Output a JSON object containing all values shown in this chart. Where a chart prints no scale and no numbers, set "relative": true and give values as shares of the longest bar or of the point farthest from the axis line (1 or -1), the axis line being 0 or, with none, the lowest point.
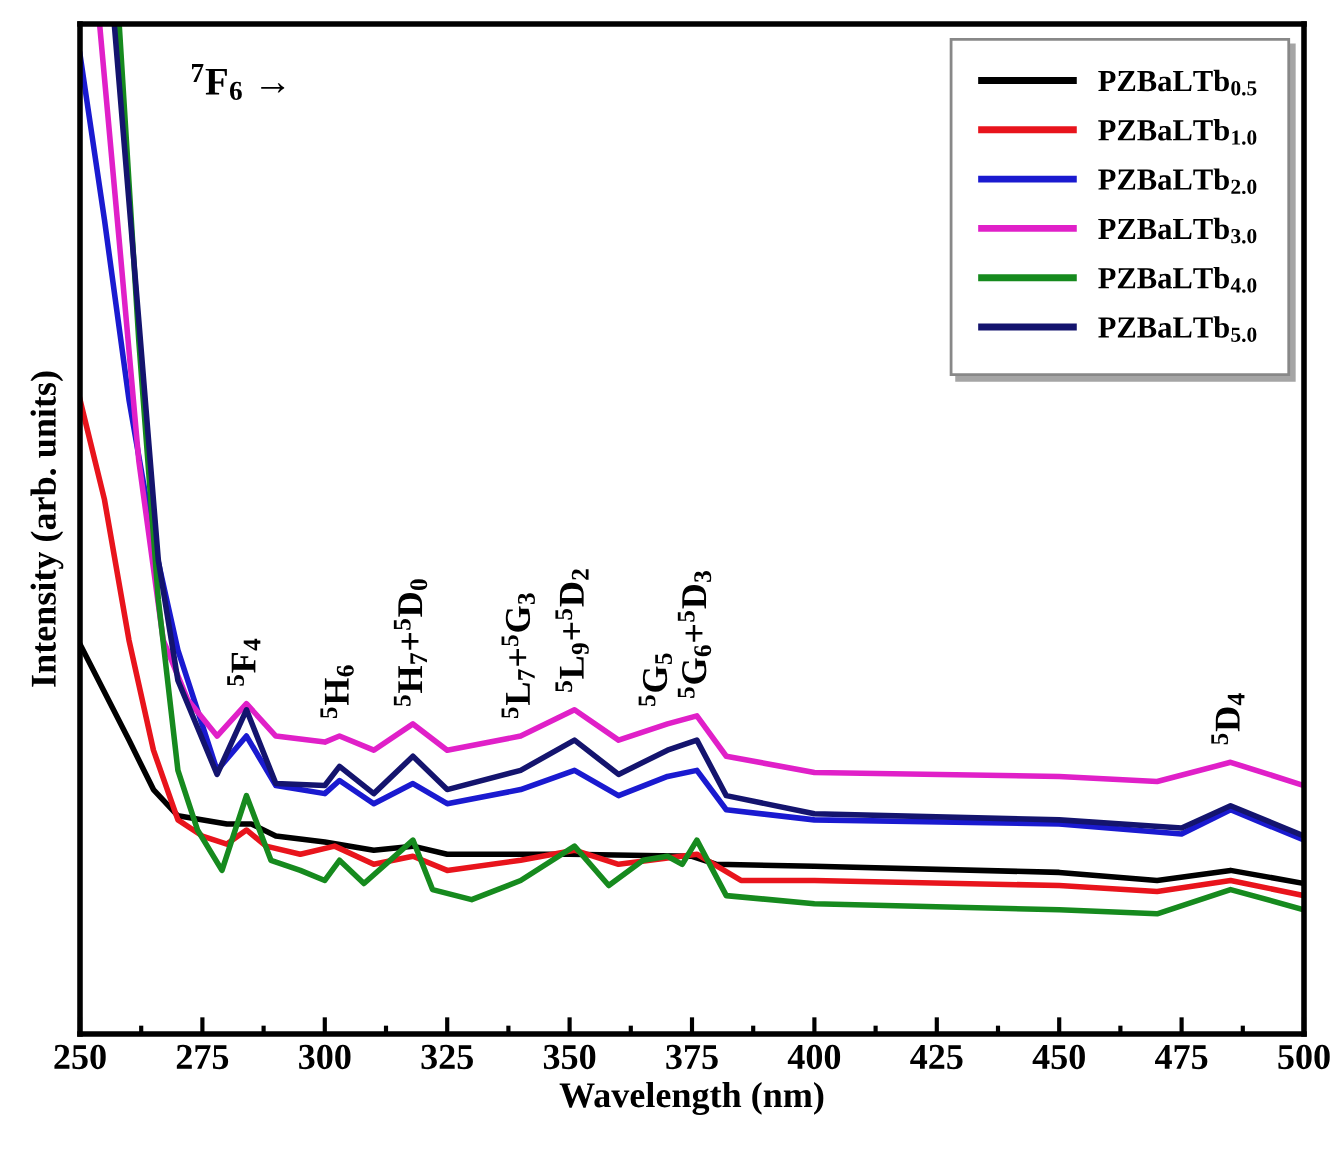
{
  "chart_data": {
    "type": "line",
    "relative": true,
    "xlabel": "Wavelength (nm)",
    "ylabel": "Intensity (arb. units)",
    "xlim": [
      250,
      500
    ],
    "xticks": [
      250,
      275,
      300,
      325,
      350,
      375,
      400,
      425,
      450,
      475,
      500
    ],
    "grid": false,
    "legend": "top right",
    "line_style": "solid",
    "marker": "none",
    "series": [
      {
        "name": "PZBaLTb$_{0.5}$",
        "color": "#000000",
        "x": [
          250,
          260,
          265,
          270,
          280,
          285,
          290,
          300,
          310,
          318,
          325,
          350,
          375,
          380,
          400,
          450,
          470,
          485,
          500
        ],
        "values": [
          0.386,
          0.291,
          0.242,
          0.216,
          0.208,
          0.208,
          0.196,
          0.19,
          0.182,
          0.186,
          0.178,
          0.178,
          0.176,
          0.168,
          0.166,
          0.16,
          0.152,
          0.162,
          0.149
        ]
      },
      {
        "name": "PZBaLTb$_{1.0}$",
        "color": "#e8141c",
        "x": [
          250,
          255,
          260,
          265,
          270,
          275,
          280,
          284,
          288,
          295,
          302,
          310,
          318,
          325,
          340,
          351,
          360,
          376,
          385,
          400,
          450,
          470,
          485,
          500
        ],
        "values": [
          0.628,
          0.529,
          0.39,
          0.281,
          0.212,
          0.196,
          0.188,
          0.202,
          0.186,
          0.178,
          0.186,
          0.168,
          0.176,
          0.162,
          0.172,
          0.182,
          0.168,
          0.178,
          0.152,
          0.152,
          0.147,
          0.141,
          0.152,
          0.137
        ]
      },
      {
        "name": "PZBaLTb$_{2.0}$",
        "color": "#1a1ad0",
        "x": [
          250,
          255,
          260,
          265,
          270,
          278,
          284,
          290,
          300,
          303,
          310,
          318,
          325,
          340,
          351,
          360,
          370,
          376,
          382,
          400,
          450,
          475,
          485,
          500
        ],
        "values": [
          0.97,
          0.806,
          0.628,
          0.489,
          0.38,
          0.261,
          0.295,
          0.246,
          0.238,
          0.251,
          0.228,
          0.248,
          0.228,
          0.242,
          0.261,
          0.236,
          0.255,
          0.261,
          0.222,
          0.212,
          0.208,
          0.198,
          0.222,
          0.192
        ]
      },
      {
        "name": "PZBaLTb$_{3.0}$",
        "color": "#e020c8",
        "x": [
          254,
          258,
          262,
          267,
          272,
          278,
          284,
          290,
          300,
          303,
          310,
          318,
          325,
          340,
          351,
          360,
          370,
          376,
          382,
          400,
          450,
          470,
          485,
          500
        ],
        "values": [
          1.0,
          0.786,
          0.568,
          0.39,
          0.331,
          0.295,
          0.327,
          0.295,
          0.289,
          0.295,
          0.281,
          0.307,
          0.281,
          0.295,
          0.321,
          0.291,
          0.307,
          0.315,
          0.275,
          0.259,
          0.255,
          0.25,
          0.269,
          0.246
        ]
      },
      {
        "name": "PZBaLTb$_{4.0}$",
        "color": "#168a1e",
        "x": [
          258,
          262,
          266,
          270,
          274,
          279,
          284,
          289,
          295,
          300,
          303,
          308,
          318,
          322,
          330,
          340,
          351,
          358,
          365,
          370,
          373,
          376,
          382,
          400,
          450,
          470,
          485,
          500
        ],
        "values": [
          1.0,
          0.687,
          0.43,
          0.261,
          0.202,
          0.162,
          0.236,
          0.172,
          0.162,
          0.152,
          0.172,
          0.149,
          0.192,
          0.143,
          0.133,
          0.152,
          0.186,
          0.147,
          0.172,
          0.176,
          0.168,
          0.192,
          0.137,
          0.129,
          0.123,
          0.119,
          0.143,
          0.123
        ]
      },
      {
        "name": "PZBaLTb$_{5.0}$",
        "color": "#14146e",
        "x": [
          257,
          262,
          266,
          270,
          278,
          284,
          290,
          300,
          303,
          310,
          318,
          325,
          340,
          351,
          360,
          370,
          376,
          382,
          400,
          450,
          475,
          485,
          500
        ],
        "values": [
          1.0,
          0.707,
          0.469,
          0.35,
          0.257,
          0.321,
          0.248,
          0.246,
          0.265,
          0.238,
          0.275,
          0.242,
          0.261,
          0.291,
          0.257,
          0.281,
          0.291,
          0.236,
          0.218,
          0.212,
          0.204,
          0.226,
          0.196
        ]
      }
    ],
    "annotations": [
      "$^{7}$F$_{6}$ →",
      {
        "text": "$^{5}$F$_{4}$",
        "x": 284,
        "y": 0.327
      },
      {
        "text": "$^{5}$H$_{6}$",
        "x": 303,
        "y": 0.295
      },
      {
        "text": "$^{5}$H$_{7}$+$^{5}$D$_{0}$",
        "x": 318,
        "y": 0.307
      },
      {
        "text": "$^{5}$L$_{7}$+$^{5}$G$_{3}$",
        "x": 340,
        "y": 0.295
      },
      {
        "text": "$^{5}$L$_{9}$+$^{5}$D$_{2}$",
        "x": 351,
        "y": 0.321
      },
      {
        "text": "$^{5}$G$_{5}$",
        "x": 368,
        "y": 0.307
      },
      {
        "text": "$^{5}$G$_{6}$+$^{5}$D$_{3}$",
        "x": 376,
        "y": 0.315
      },
      {
        "text": "$^{5}$D$_{4}$",
        "x": 485,
        "y": 0.269
      }
    ]
  }
}
